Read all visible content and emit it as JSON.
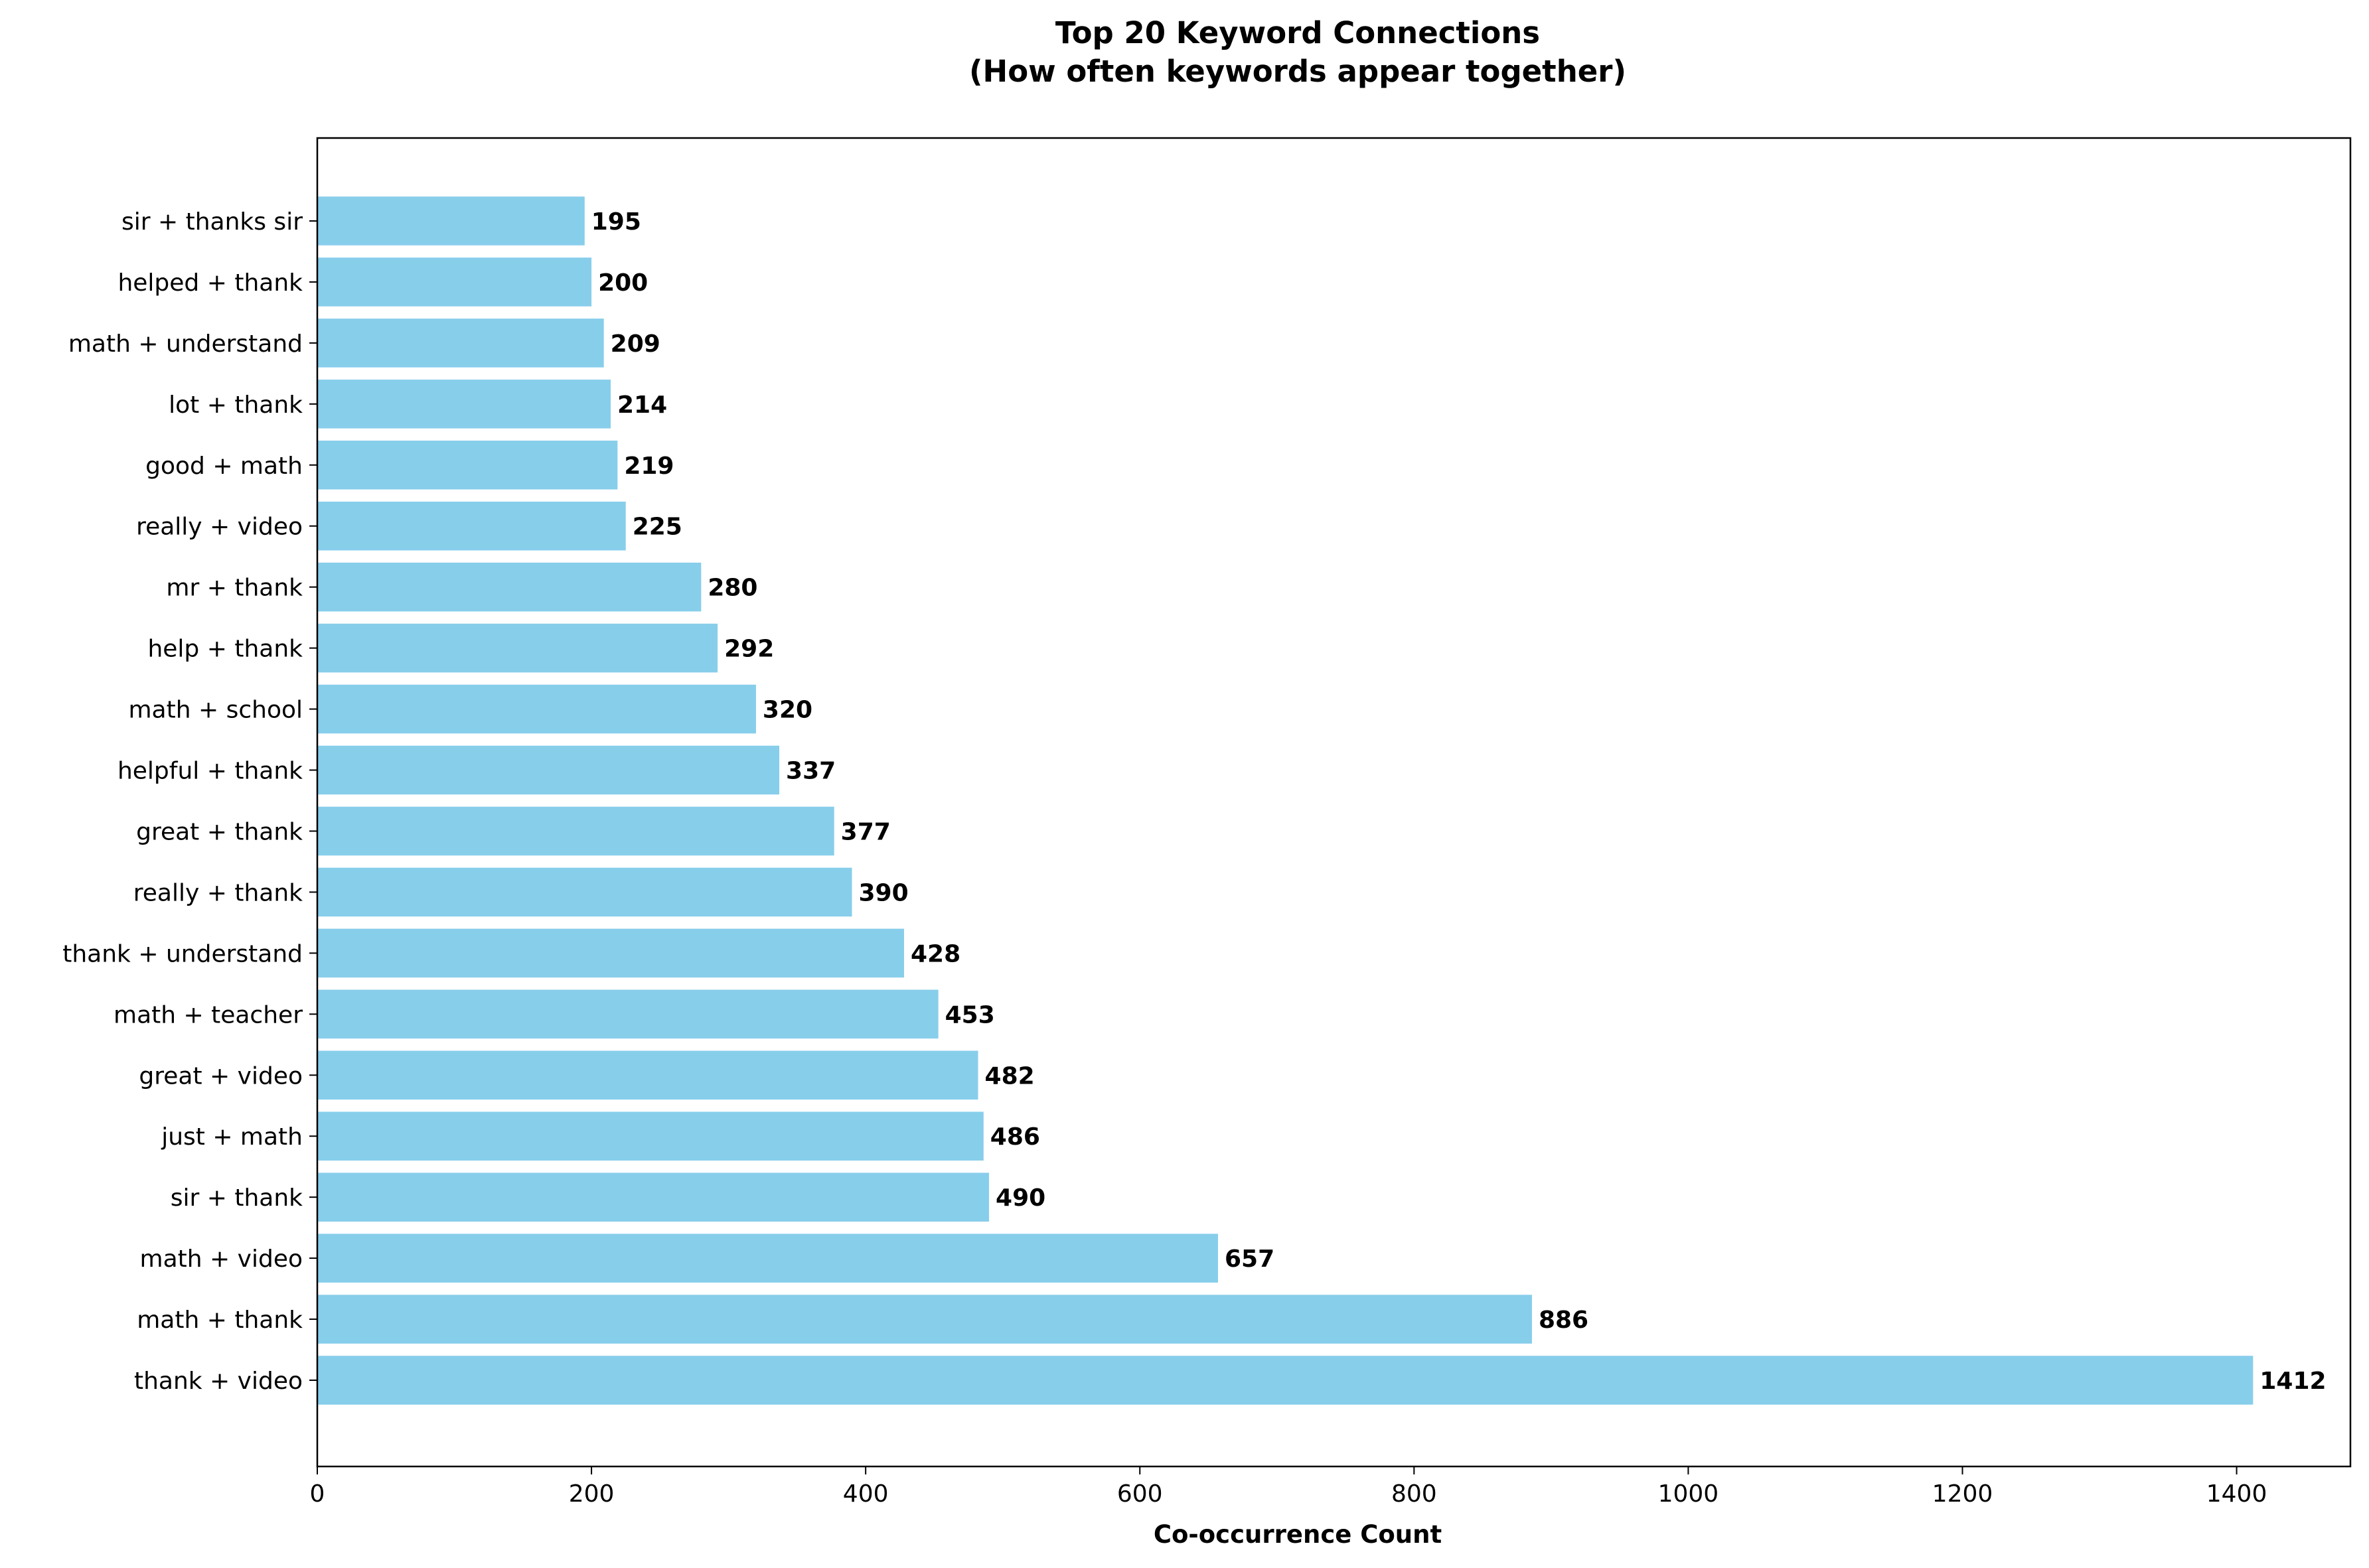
{
  "chart_data": {
    "type": "bar",
    "orientation": "horizontal",
    "title": "Top 20 Keyword Connections",
    "subtitle": "(How often keywords appear together)",
    "xlabel": "Co-occurrence Count",
    "ylabel": "",
    "xlim": [
      0,
      1483
    ],
    "xticks": [
      0,
      200,
      400,
      600,
      800,
      1000,
      1200,
      1400
    ],
    "grid": false,
    "bar_color": "#87CEEB",
    "categories": [
      "thank + video",
      "math + thank",
      "math + video",
      "sir + thank",
      "just + math",
      "great + video",
      "math + teacher",
      "thank + understand",
      "really + thank",
      "great + thank",
      "helpful + thank",
      "math + school",
      "help + thank",
      "mr + thank",
      "really + video",
      "good + math",
      "lot + thank",
      "math + understand",
      "helped + thank",
      "sir + thanks sir"
    ],
    "values": [
      1412,
      886,
      657,
      490,
      486,
      482,
      453,
      428,
      390,
      377,
      337,
      320,
      292,
      280,
      225,
      219,
      214,
      209,
      200,
      195
    ]
  }
}
